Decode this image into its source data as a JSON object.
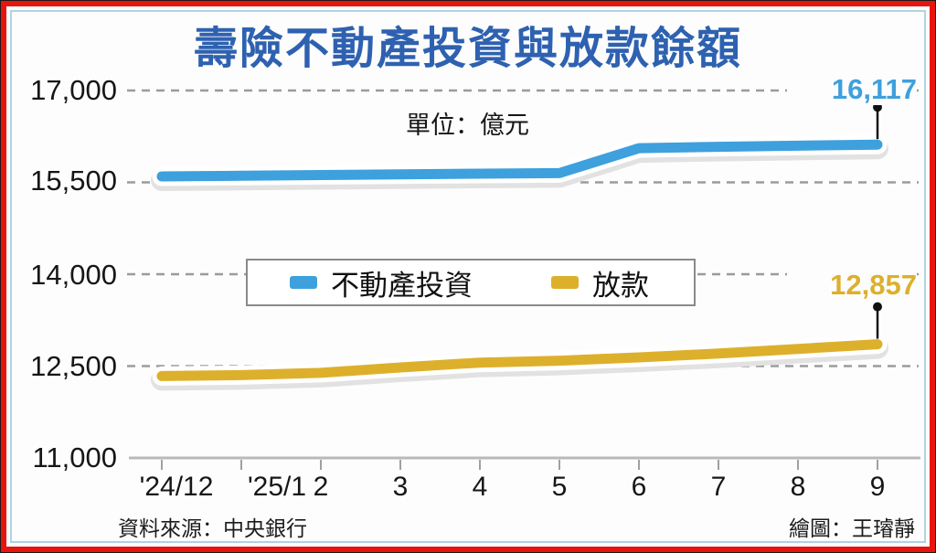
{
  "title": {
    "text": "壽險不動產投資與放款餘額",
    "color": "#2e61b0"
  },
  "unit_label": "單位：億元",
  "frame": {
    "border_color": "#e8150f",
    "rule_color": "#b0d3e2"
  },
  "chart_data": {
    "type": "line",
    "title": "壽險不動產投資與放款餘額",
    "unit": "億元",
    "categories": [
      "'24/12",
      "'25/1",
      "2",
      "3",
      "4",
      "5",
      "6",
      "7",
      "8",
      "9"
    ],
    "ylim": [
      11000,
      17000
    ],
    "y_ticks": [
      17000,
      15500,
      14000,
      12500,
      11000
    ],
    "y_tick_labels": [
      "17,000",
      "15,500",
      "14,000",
      "12,500",
      "11,000"
    ],
    "grid": "dashed-horizontal",
    "legend_position": "center-middle",
    "series": [
      {
        "name": "不動產投資",
        "color": "#3ea0dc",
        "values": [
          15597,
          15608,
          15620,
          15630,
          15642,
          15650,
          16058,
          16080,
          16098,
          16117
        ],
        "end_label": "16,117"
      },
      {
        "name": "放款",
        "color": "#ddb02c",
        "values": [
          12338,
          12352,
          12390,
          12478,
          12556,
          12588,
          12642,
          12705,
          12780,
          12857
        ],
        "end_label": "12,857"
      }
    ]
  },
  "footer": {
    "source": "資料來源：中央銀行",
    "credit": "繪圖：王璿靜"
  }
}
